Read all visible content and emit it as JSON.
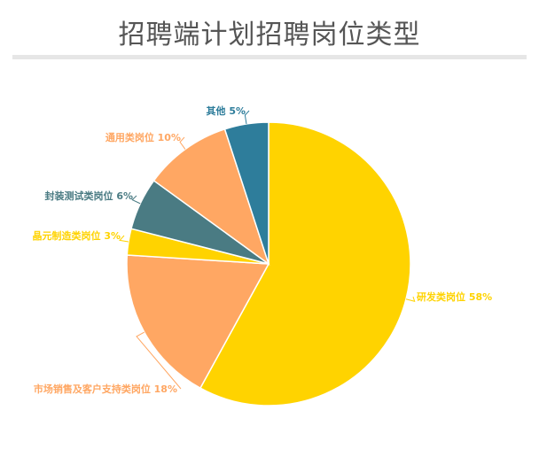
{
  "chart_data": {
    "type": "pie",
    "title": "招聘端计划招聘岗位类型",
    "label_format": "{name} {value}%",
    "slices": [
      {
        "name": "研发类岗位",
        "value": 58,
        "color": "#FFD300"
      },
      {
        "name": "市场销售及客户支持类岗位",
        "value": 18,
        "color": "#FFA763"
      },
      {
        "name": "晶元制造类岗位",
        "value": 3,
        "color": "#FFD300"
      },
      {
        "name": "封装测试类岗位",
        "value": 6,
        "color": "#4A7B83"
      },
      {
        "name": "通用类岗位",
        "value": 10,
        "color": "#FFA763"
      },
      {
        "name": "其他",
        "value": 5,
        "color": "#2E7D9B"
      }
    ]
  }
}
